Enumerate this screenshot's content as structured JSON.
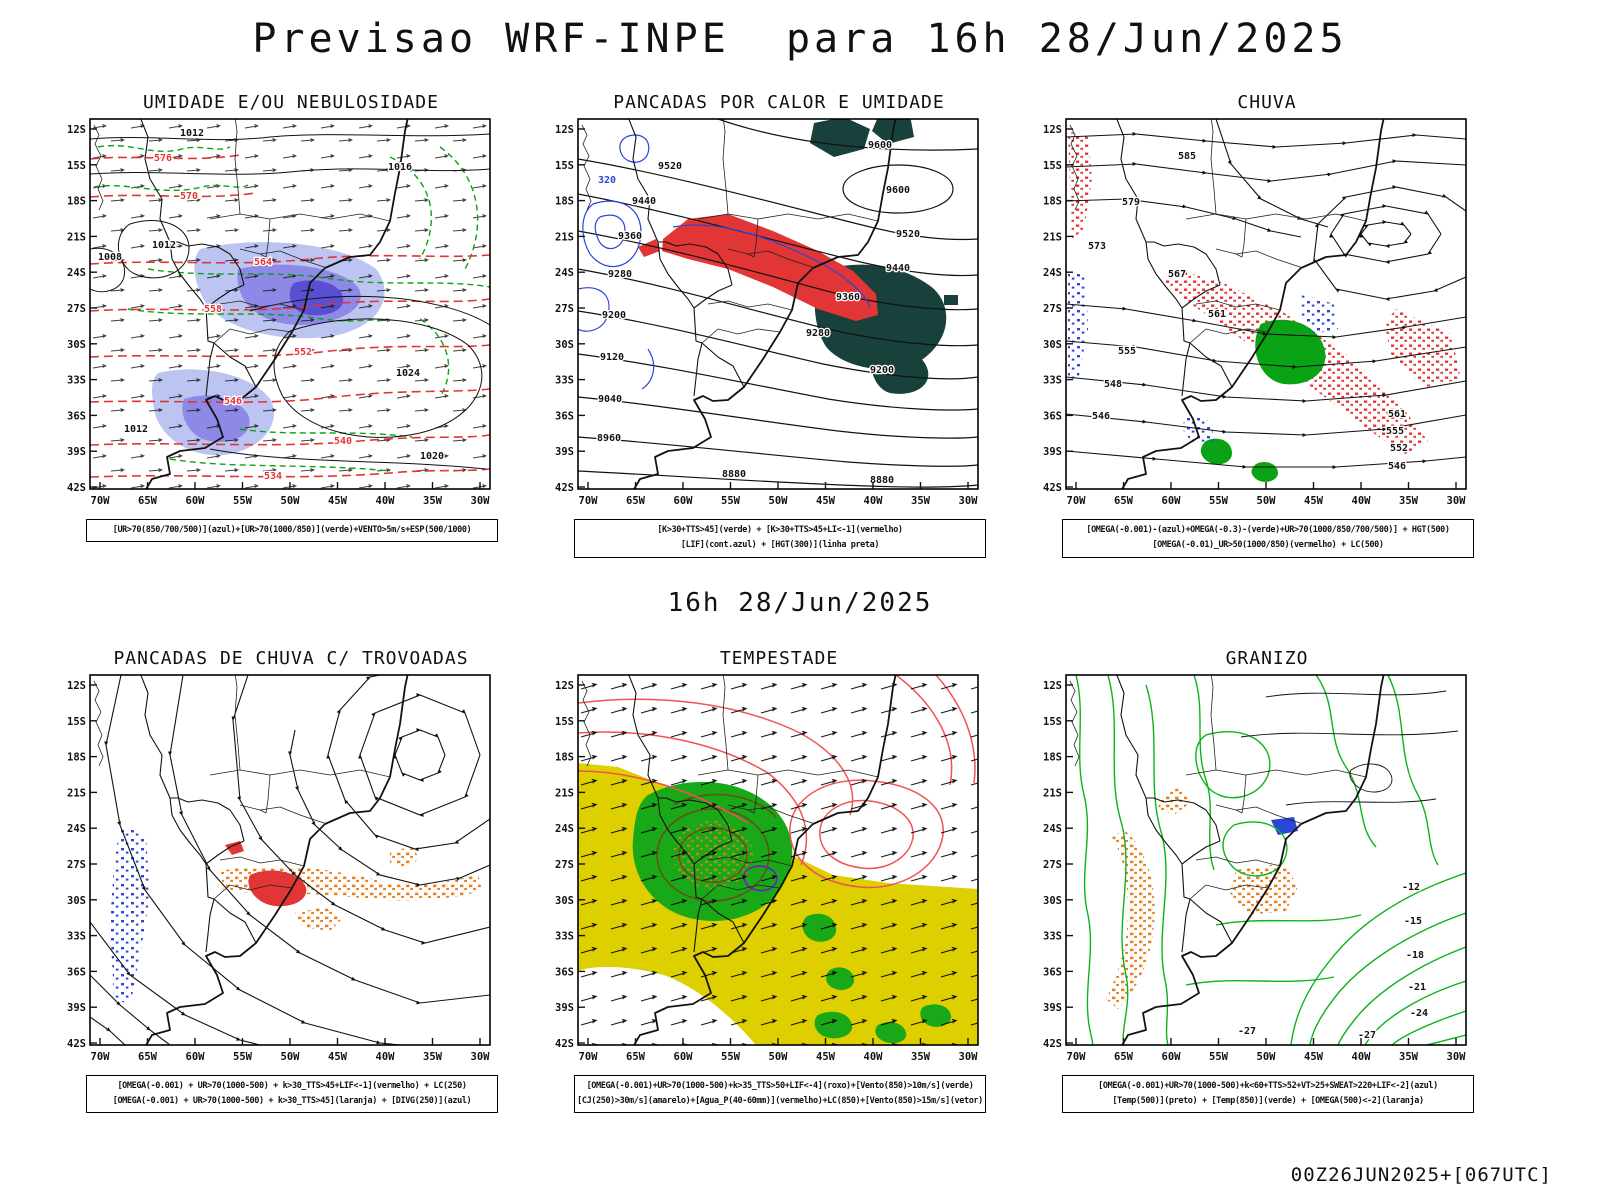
{
  "page": {
    "title": "Previsao WRF-INPE  para 16h 28/Jun/2025",
    "middle_label": "16h 28/Jun/2025",
    "footer": "00Z26JUN2025+[067UTC]"
  },
  "axes": {
    "lat_ticks": [
      "12S",
      "15S",
      "18S",
      "21S",
      "24S",
      "27S",
      "30S",
      "33S",
      "36S",
      "39S",
      "42S"
    ],
    "lon_ticks": [
      "70W",
      "65W",
      "60W",
      "55W",
      "50W",
      "45W",
      "40W",
      "35W",
      "30W"
    ]
  },
  "colors": {
    "red": "#e23535",
    "green": "#0aa315",
    "bright_green": "#0cb41c",
    "dark_teal": "#17413a",
    "blue": "#2a46d8",
    "light_purple_fill": "#bcc4f2",
    "purple_fill": "#8e88e6",
    "dark_purple_fill": "#5a4fd2",
    "yellow": "#ddcf00",
    "orange": "#e8821e",
    "pink_red": "#f25252",
    "olive_brown": "#6b4e16",
    "purple_line": "#7a18c8"
  },
  "panels": [
    {
      "key": "umidade",
      "title": "UMIDADE E/OU NEBULOSIDADE",
      "caption": [
        "[UR>70(850/700/500)](azul)+[UR>70(1000/850)](verde)+VENTO>5m/s+ESP(500/1000)"
      ],
      "labels": [
        "1012",
        "1016",
        "1012",
        "1008",
        "1024",
        "1020",
        "1012",
        "576",
        "570",
        "564",
        "558",
        "552",
        "546",
        "540",
        "534"
      ]
    },
    {
      "key": "pancadas-calor-umidade",
      "title": "PANCADAS POR CALOR E UMIDADE",
      "caption": [
        "[K>30+TTS>45](verde) + [K>30+TTS>45+LI<-1](vermelho)",
        "[LIF](cont.azul) + [HGT(300)](linha preta)"
      ],
      "labels": [
        "9600",
        "9600",
        "9520",
        "9440",
        "9360",
        "9280",
        "9200",
        "9120",
        "9040",
        "8960",
        "8880",
        "9520",
        "9440",
        "9360",
        "9280",
        "9200",
        "8880",
        "320"
      ]
    },
    {
      "key": "chuva",
      "title": "CHUVA",
      "caption": [
        "[OMEGA(-0.001)-(azul)+OMEGA(-0.3)-(verde)+UR>70(1000/850/700/500)] + HGT(500)",
        "[OMEGA(-0.01)_UR>50(1000/850)(vermelho) + LC(500)"
      ],
      "labels": [
        "585",
        "579",
        "573",
        "567",
        "561",
        "555",
        "548",
        "546",
        "561",
        "555",
        "552",
        "546"
      ]
    },
    {
      "key": "pancadas-trovoadas",
      "title": "PANCADAS DE CHUVA C/ TROVOADAS",
      "caption": [
        "[OMEGA(-0.001) + UR>70(1000-500) + k>30_TTS>45+LIF<-1](vermelho) + LC(250)",
        "[OMEGA(-0.001) + UR>70(1000-500) + k>30_TTS>45](laranja) + [DIVG(250)](azul)"
      ],
      "labels": []
    },
    {
      "key": "tempestade",
      "title": "TEMPESTADE",
      "caption": [
        "[OMEGA(-0.001)+UR>70(1000-500)+k>35_TTS>50+LIF<-4](roxo)+[Vento(850)>10m/s](verde)",
        "[CJ(250)>30m/s](amarelo)+[Agua_P(40-60mm)](vermelho)+LC(850)+[Vento(850)>15m/s](vetor)"
      ],
      "labels": []
    },
    {
      "key": "granizo",
      "title": "GRANIZO",
      "caption": [
        "[OMEGA(-0.001)+UR>70(1000-500)+k<60+TTS>52+VT>25+SWEAT>220+LIF<-2](azul)",
        "[Temp(500)](preto) + [Temp(850)](verde) + [OMEGA(500)<-2](laranja)"
      ],
      "labels": [
        "-12",
        "-15",
        "-18",
        "-21",
        "-24",
        "-27",
        "-27"
      ]
    }
  ]
}
